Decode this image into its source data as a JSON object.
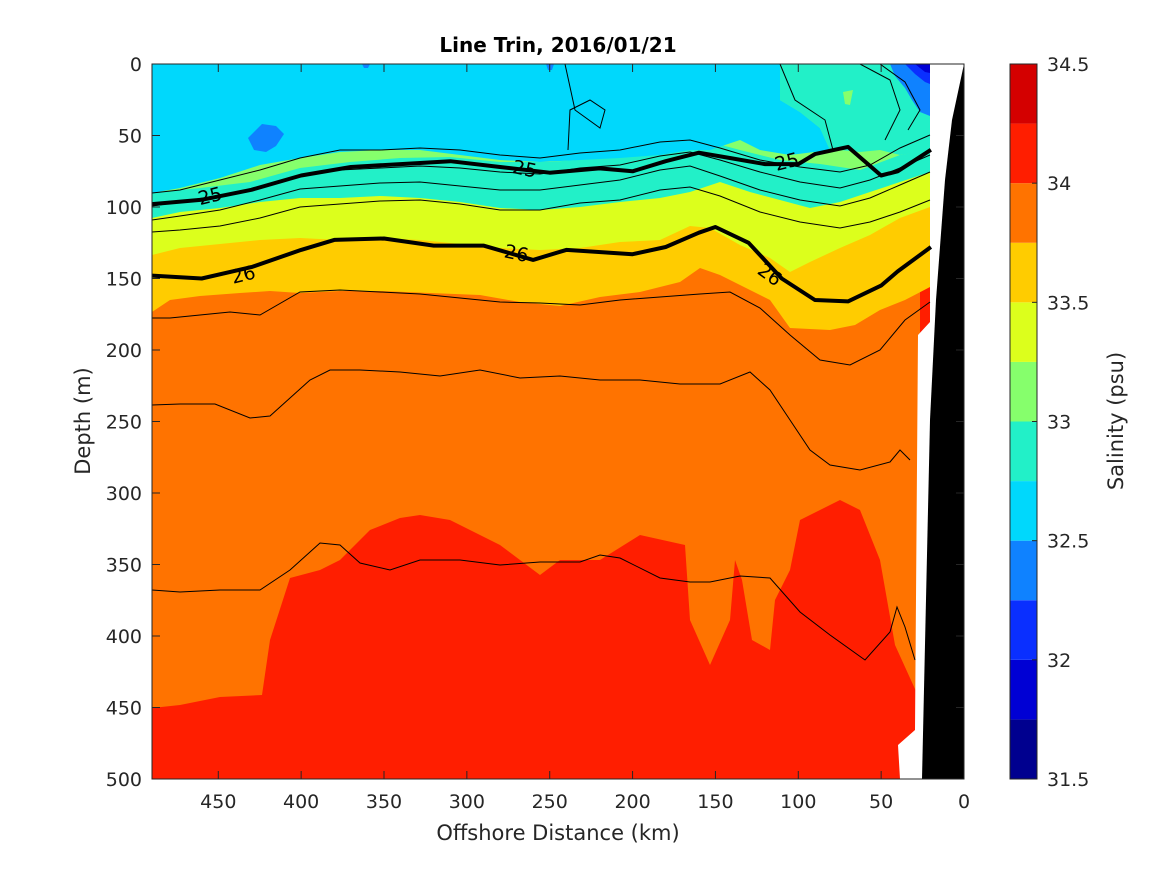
{
  "chart_data": {
    "type": "heatmap",
    "title": "Line Trin, 2016/01/21",
    "xlabel": "Offshore Distance (km)",
    "ylabel": "Depth (m)",
    "xlim": [
      490,
      0
    ],
    "ylim": [
      0,
      500
    ],
    "x_ticks": [
      "450",
      "400",
      "350",
      "300",
      "250",
      "200",
      "150",
      "100",
      "50",
      "0"
    ],
    "x_tick_values": [
      450,
      400,
      350,
      300,
      250,
      200,
      150,
      100,
      50,
      0
    ],
    "y_ticks": [
      "0",
      "50",
      "100",
      "150",
      "200",
      "250",
      "300",
      "350",
      "400",
      "450",
      "500"
    ],
    "y_tick_values": [
      0,
      50,
      100,
      150,
      200,
      250,
      300,
      350,
      400,
      450,
      500
    ],
    "colorbar": {
      "label": "Salinity (psu)",
      "tick_labels": [
        "31.5",
        "32",
        "32.5",
        "33",
        "33.5",
        "34",
        "34.5"
      ],
      "tick_values": [
        31.5,
        32,
        32.5,
        33,
        33.5,
        34,
        34.5
      ],
      "levels": [
        31.5,
        31.75,
        32,
        32.25,
        32.5,
        32.75,
        33,
        33.25,
        33.5,
        33.75,
        34,
        34.25,
        34.5
      ],
      "colors": [
        "#00008f",
        "#0000d4",
        "#0a2fff",
        "#0f82ff",
        "#00d8fc",
        "#22f0c8",
        "#86ff6c",
        "#dcff1c",
        "#ffcc00",
        "#ff7300",
        "#ff1e00",
        "#d40000"
      ]
    },
    "salinity_layers": [
      {
        "band": "32.5-32.75",
        "color": "#00d8fc",
        "x": [
          490,
          115,
          115,
          490
        ],
        "depth": [
          0,
          0,
          95,
          95
        ]
      },
      {
        "band": "32.75-33",
        "color": "#22f0c8",
        "x": [
          115,
          20,
          20,
          30,
          60,
          100,
          115
        ],
        "depth": [
          0,
          0,
          70,
          85,
          55,
          60,
          70
        ]
      },
      {
        "band": "33.5-33.75",
        "color": "#ffcc00"
      },
      {
        "band": "33.75-34",
        "color": "#ff7300"
      },
      {
        "band": "34-34.25",
        "color": "#ff1e00"
      }
    ],
    "density_contours": [
      {
        "label": "25",
        "x": [
          490,
          460,
          430,
          400,
          370,
          340,
          310,
          280,
          250,
          220,
          200,
          180,
          160,
          140,
          120,
          100,
          90,
          70,
          50,
          40,
          20
        ],
        "depth": [
          98,
          95,
          88,
          78,
          72,
          70,
          68,
          72,
          76,
          73,
          75,
          68,
          62,
          66,
          70,
          70,
          63,
          58,
          78,
          75,
          60
        ]
      },
      {
        "label": "26",
        "x": [
          490,
          460,
          430,
          400,
          380,
          350,
          320,
          290,
          260,
          240,
          200,
          180,
          160,
          150,
          130,
          110,
          90,
          70,
          50,
          40,
          20
        ],
        "depth": [
          148,
          150,
          142,
          130,
          123,
          122,
          127,
          127,
          137,
          130,
          133,
          128,
          118,
          114,
          125,
          150,
          165,
          166,
          155,
          145,
          128
        ]
      }
    ],
    "contour_labels": [
      "25",
      "25",
      "25",
      "26",
      "26",
      "26"
    ]
  }
}
